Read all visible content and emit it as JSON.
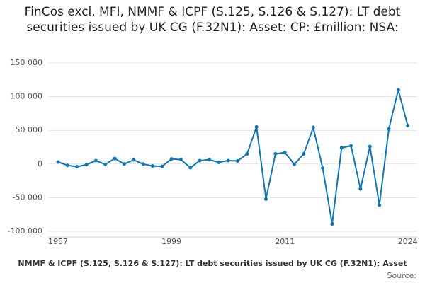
{
  "chart_data": {
    "type": "line",
    "title": "FinCos excl. MFI, NMMF & ICPF (S.125, S.126 & S.127): LT debt securities issued by UK CG (F.32N1): Asset: CP: £million: NSA:",
    "x_label": "NMMF & ICPF (S.125, S.126 & S.127): LT debt securities issued by UK CG (F.32N1): Asset",
    "source": "Source:",
    "x": [
      1987,
      1988,
      1989,
      1990,
      1991,
      1992,
      1993,
      1994,
      1995,
      1996,
      1997,
      1998,
      1999,
      2000,
      2001,
      2002,
      2003,
      2004,
      2005,
      2006,
      2007,
      2008,
      2009,
      2010,
      2011,
      2012,
      2013,
      2014,
      2015,
      2016,
      2017,
      2018,
      2019,
      2020,
      2021,
      2022,
      2023,
      2024
    ],
    "series": [
      {
        "name": "Value",
        "color": "#0f77b3",
        "values": [
          3000,
          -2000,
          -4000,
          -1000,
          5000,
          -500,
          8000,
          0,
          6000,
          0,
          -3000,
          -3500,
          7500,
          6500,
          -5500,
          5000,
          6500,
          2500,
          5000,
          4500,
          15000,
          55000,
          -52000,
          15000,
          17000,
          -500,
          15000,
          54000,
          -6000,
          -89000,
          24000,
          27000,
          -37000,
          26000,
          -61000,
          52000,
          110000,
          57000
        ]
      }
    ],
    "xlim": [
      1987,
      2025
    ],
    "xticks": [
      1987,
      1999,
      2011,
      2024
    ],
    "ylim": [
      -100000,
      150000
    ],
    "yticks": [
      {
        "value": -100000,
        "label": "-100 000"
      },
      {
        "value": -50000,
        "label": "-50 000"
      },
      {
        "value": 0,
        "label": "0"
      },
      {
        "value": 50000,
        "label": "50 000"
      },
      {
        "value": 100000,
        "label": "100 000"
      },
      {
        "value": 150000,
        "label": "150 000"
      }
    ],
    "grid": true
  }
}
